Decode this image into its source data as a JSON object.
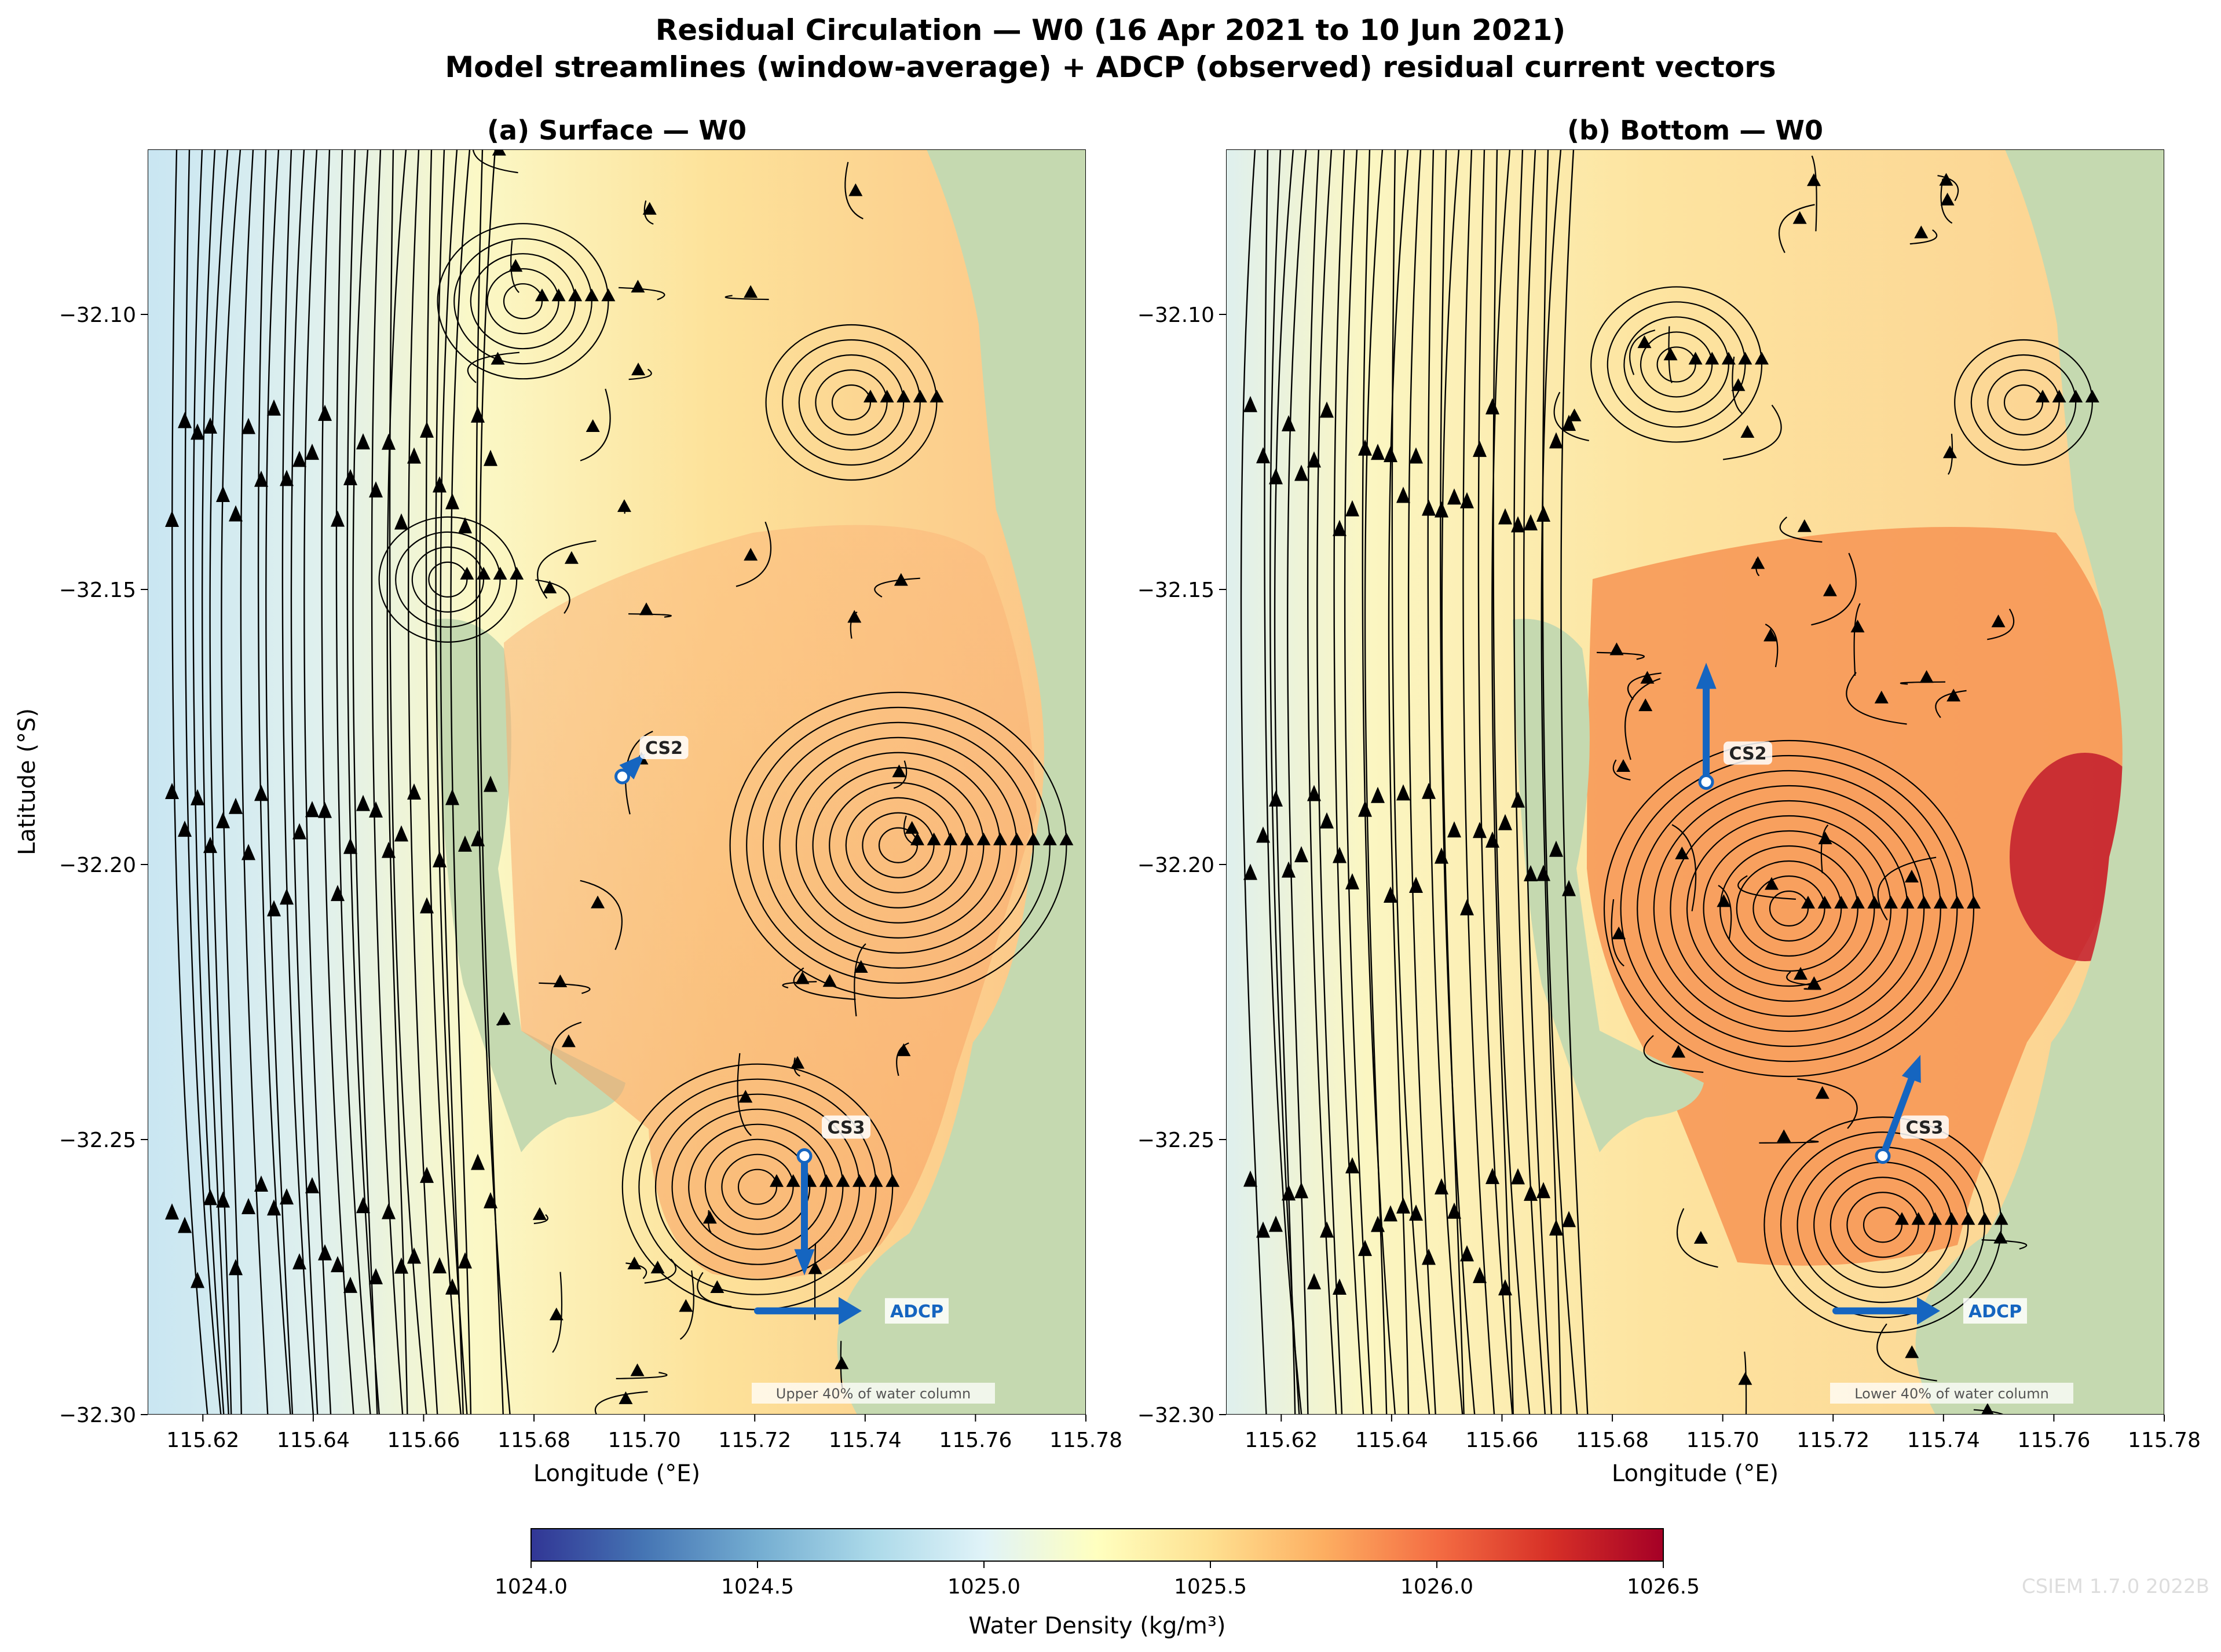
{
  "title_line1": "Residual Circulation — W0  (16 Apr 2021 to 10 Jun 2021)",
  "title_line2": "Model streamlines (window-average) + ADCP (observed) residual current vectors",
  "panels": [
    {
      "title": "(a) Surface — W0",
      "note": "Upper 40% of water column",
      "stations": [
        {
          "name": "CS2",
          "lon": 115.696,
          "lat": -32.184,
          "direction": "north-east",
          "speed_rel": 0.15
        },
        {
          "name": "CS3",
          "lon": 115.729,
          "lat": -32.253,
          "direction": "south",
          "speed_rel": 0.9
        }
      ]
    },
    {
      "title": "(b) Bottom — W0",
      "note": "Lower 40% of water column",
      "stations": [
        {
          "name": "CS2",
          "lon": 115.697,
          "lat": -32.185,
          "direction": "north",
          "speed_rel": 0.9
        },
        {
          "name": "CS3",
          "lon": 115.729,
          "lat": -32.253,
          "direction": "north-north-east",
          "speed_rel": 0.8
        }
      ]
    }
  ],
  "adcp_legend_label": "ADCP",
  "x_axis": {
    "label": "Longitude (°E)",
    "range": [
      115.61,
      115.78
    ],
    "ticks": [
      "115.62",
      "115.64",
      "115.66",
      "115.68",
      "115.70",
      "115.72",
      "115.74",
      "115.76",
      "115.78"
    ]
  },
  "y_axis": {
    "label": "Latitude (°S)",
    "range": [
      -32.3,
      -32.07
    ],
    "ticks": [
      "−32.10",
      "−32.15",
      "−32.20",
      "−32.25",
      "−32.30"
    ]
  },
  "colorbar": {
    "label": "Water Density (kg/m³)",
    "range": [
      1024.0,
      1026.5
    ],
    "ticks": [
      "1024.0",
      "1024.5",
      "1025.0",
      "1025.5",
      "1026.0",
      "1026.5"
    ],
    "colormap": "RdYlBu_r"
  },
  "colors": {
    "land": "#c5d9b0",
    "adcp_arrow": "#1565c0",
    "streamline": "#000000"
  },
  "watermark": "CSIEM 1.7.0 2022B"
}
